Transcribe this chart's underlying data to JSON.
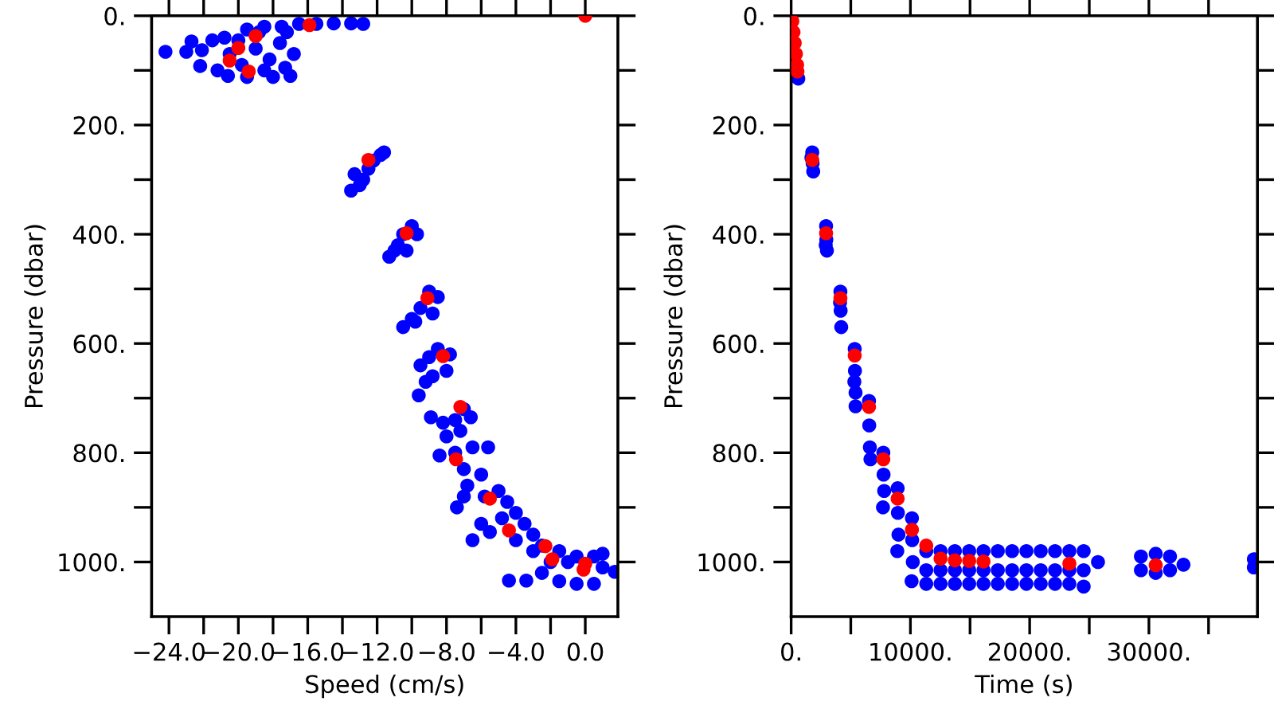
{
  "chart_data": [
    {
      "type": "scatter",
      "xlabel": "Speed (cm/s)",
      "ylabel": "Pressure (dbar)",
      "xlim": [
        -25,
        1.88
      ],
      "ylim": [
        1100,
        0
      ],
      "xticks": [
        {
          "value": -24,
          "label": "−24.0"
        },
        {
          "value": -22,
          "label": null
        },
        {
          "value": -20,
          "label": "−20.0"
        },
        {
          "value": -18,
          "label": null
        },
        {
          "value": -16,
          "label": "−16.0"
        },
        {
          "value": -14,
          "label": null
        },
        {
          "value": -12,
          "label": "−12.0"
        },
        {
          "value": -10,
          "label": null
        },
        {
          "value": -8,
          "label": "−8.0"
        },
        {
          "value": -6,
          "label": null
        },
        {
          "value": -4,
          "label": "−4.0"
        },
        {
          "value": -2,
          "label": null
        },
        {
          "value": 0,
          "label": "0.0"
        }
      ],
      "yticks": [
        {
          "value": 0,
          "label": "0."
        },
        {
          "value": 100,
          "label": null
        },
        {
          "value": 200,
          "label": "200."
        },
        {
          "value": 300,
          "label": null
        },
        {
          "value": 400,
          "label": "400."
        },
        {
          "value": 500,
          "label": null
        },
        {
          "value": 600,
          "label": "600."
        },
        {
          "value": 700,
          "label": null
        },
        {
          "value": 800,
          "label": "800."
        },
        {
          "value": 900,
          "label": null
        },
        {
          "value": 1000,
          "label": "1000."
        }
      ],
      "series": [
        {
          "color": "#0000ff",
          "x": [
            -24.2,
            -23.0,
            -22.7,
            -22.1,
            -22.2,
            -21.5,
            -21.2,
            -20.8,
            -20.5,
            -20.6,
            -20.0,
            -19.8,
            -19.5,
            -19.0,
            -18.8,
            -18.5,
            -18.2,
            -18.0,
            -17.6,
            -17.3,
            -17.0,
            -17.2,
            -16.8,
            -16.5,
            -15.5,
            -14.5,
            -13.5,
            -12.8,
            -18.5,
            -19.5,
            -17.5,
            -13.5,
            -13.3,
            -12.8,
            -12.5,
            -12.2,
            -11.8,
            -11.6,
            -13.0,
            -11.3,
            -10.8,
            -10.5,
            -10.0,
            -9.7,
            -10.3,
            -11.0,
            -10.5,
            -10.0,
            -9.5,
            -9.0,
            -8.5,
            -8.8,
            -9.8,
            -9.6,
            -9.5,
            -9.0,
            -8.5,
            -7.8,
            -8.0,
            -8.8,
            -9.2,
            -8.9,
            -8.4,
            -8.0,
            -7.5,
            -7.0,
            -6.6,
            -7.2,
            -8.2,
            -7.5,
            -7.0,
            -6.5,
            -5.6,
            -6.0,
            -6.8,
            -7.4,
            -7.0,
            -5.8,
            -5.0,
            -4.5,
            -4.8,
            -6.0,
            -6.5,
            -4.0,
            -3.5,
            -3.0,
            -4.0,
            -3.0,
            -2.5,
            -2.0,
            -1.5,
            -1.0,
            -0.5,
            0.5,
            1.0,
            1.7,
            -1.5,
            -0.5,
            0.5,
            -4.4,
            -3.4,
            -2.5,
            -5.5,
            1.0
          ],
          "values": [
            66,
            66,
            47,
            63,
            92,
            45,
            100,
            40,
            70,
            110,
            45,
            90,
            112,
            60,
            30,
            100,
            80,
            112,
            50,
            95,
            110,
            30,
            70,
            15,
            15,
            14,
            14,
            15,
            20,
            25,
            20,
            320,
            290,
            300,
            280,
            265,
            255,
            250,
            310,
            441,
            420,
            400,
            385,
            400,
            430,
            430,
            570,
            555,
            535,
            505,
            515,
            545,
            560,
            695,
            640,
            625,
            610,
            620,
            650,
            660,
            670,
            735,
            805,
            770,
            740,
            720,
            735,
            760,
            745,
            800,
            830,
            790,
            790,
            840,
            860,
            900,
            880,
            880,
            870,
            890,
            920,
            930,
            960,
            910,
            930,
            950,
            960,
            980,
            970,
            1000,
            980,
            1000,
            990,
            990,
            1010,
            1018,
            1035,
            1040,
            1040,
            1034,
            1034,
            1020,
            945,
            985
          ]
        },
        {
          "color": "#ff0000",
          "x": [
            0.0,
            -15.9,
            -19.0,
            -20.0,
            -20.5,
            -19.4,
            -12.5,
            -10.3,
            -9.1,
            -8.2,
            -7.2,
            -7.45,
            -5.5,
            -4.4,
            -2.3,
            -1.9,
            0.0,
            -0.1
          ],
          "values": [
            0,
            17,
            37,
            59,
            82,
            102,
            264,
            398,
            517,
            623,
            716,
            812,
            884,
            942,
            971,
            995,
            1003,
            1014
          ]
        }
      ]
    },
    {
      "type": "scatter",
      "xlabel": "Time (s)",
      "ylabel": "Pressure (dbar)",
      "xlim": [
        0,
        39100
      ],
      "ylim": [
        1100,
        0
      ],
      "xticks": [
        {
          "value": 0,
          "label": "0."
        },
        {
          "value": 5000,
          "label": null
        },
        {
          "value": 10000,
          "label": "10000."
        },
        {
          "value": 15000,
          "label": null
        },
        {
          "value": 20000,
          "label": "20000."
        },
        {
          "value": 25000,
          "label": null
        },
        {
          "value": 30000,
          "label": "30000."
        },
        {
          "value": 35000,
          "label": null
        }
      ],
      "yticks": [
        {
          "value": 0,
          "label": "0."
        },
        {
          "value": 100,
          "label": null
        },
        {
          "value": 200,
          "label": "200."
        },
        {
          "value": 300,
          "label": null
        },
        {
          "value": 400,
          "label": "400."
        },
        {
          "value": 500,
          "label": null
        },
        {
          "value": 600,
          "label": "600."
        },
        {
          "value": 700,
          "label": null
        },
        {
          "value": 800,
          "label": "800."
        },
        {
          "value": 900,
          "label": null
        },
        {
          "value": 1000,
          "label": "1000."
        }
      ],
      "series": [
        {
          "color": "#0000ff",
          "x": [
            600,
            1770,
            1800,
            1850,
            1700,
            2930,
            2950,
            3000,
            2900,
            4130,
            4150,
            4200,
            4100,
            5330,
            5350,
            5400,
            5300,
            5400,
            6530,
            6550,
            6600,
            6650,
            7730,
            7750,
            7800,
            7700,
            8930,
            8950,
            9000,
            8900,
            10130,
            10150,
            10200,
            10100,
            11330,
            11330,
            11330,
            12530,
            12530,
            12530,
            13730,
            13730,
            13730,
            14930,
            14930,
            14930,
            16130,
            16130,
            16130,
            17330,
            17330,
            17330,
            18530,
            18530,
            18530,
            19730,
            19730,
            19730,
            20930,
            20930,
            20930,
            22130,
            22130,
            22130,
            23330,
            23330,
            23330,
            24530,
            24530,
            24530,
            25730,
            29330,
            29330,
            30570,
            30570,
            31770,
            31770,
            32900,
            38800,
            38800
          ],
          "values": [
            115,
            250,
            270,
            285,
            260,
            385,
            410,
            430,
            420,
            505,
            540,
            570,
            525,
            610,
            650,
            690,
            670,
            715,
            705,
            750,
            790,
            812,
            800,
            840,
            870,
            900,
            865,
            910,
            950,
            980,
            920,
            960,
            1000,
            1035,
            980,
            1015,
            1040,
            980,
            1015,
            1040,
            980,
            1015,
            1040,
            980,
            1015,
            1040,
            980,
            1015,
            1040,
            980,
            1015,
            1040,
            980,
            1015,
            1040,
            980,
            1015,
            1040,
            980,
            1015,
            1040,
            980,
            1015,
            1040,
            980,
            1015,
            1040,
            980,
            1015,
            1045,
            1000,
            990,
            1015,
            985,
            1020,
            990,
            1015,
            1005,
            995,
            1010
          ]
        },
        {
          "color": "#ff0000",
          "x": [
            100,
            200,
            300,
            400,
            500,
            530,
            1770,
            2930,
            4130,
            5330,
            6530,
            7730,
            8930,
            10130,
            11330,
            12530,
            13730,
            14930,
            16130,
            23330,
            30570
          ],
          "values": [
            10,
            30,
            50,
            70,
            90,
            102,
            264,
            398,
            517,
            622,
            716,
            812,
            884,
            941,
            970,
            994,
            997,
            998,
            999,
            1003,
            1006
          ]
        }
      ]
    }
  ]
}
